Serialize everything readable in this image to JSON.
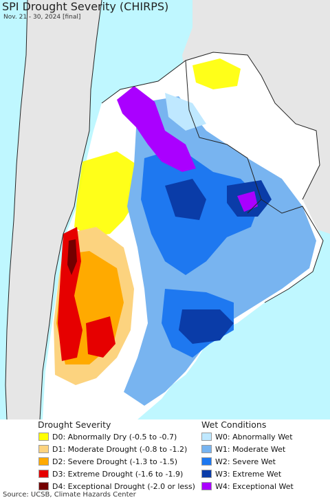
{
  "title": "SPI Drought Severity (CHIRPS)",
  "subtitle": "Nov. 21 - 30, 2024 [final]",
  "colors": {
    "ocean": "#bff7ff",
    "land_outside": "#e6e6e6",
    "land_normal": "#ffffff",
    "border": "#222222"
  },
  "legend": {
    "drought": {
      "heading": "Drought Severity",
      "items": [
        {
          "label": "D0: Abnormally Dry (-0.5 to -0.7)",
          "color": "#ffff00"
        },
        {
          "label": "D1: Moderate Drought (-0.8 to -1.2)",
          "color": "#fcd37f"
        },
        {
          "label": "D2: Severe Drought (-1.3 to -1.5)",
          "color": "#ffaa00"
        },
        {
          "label": "D3: Extreme Drought (-1.6 to -1.9)",
          "color": "#e60000"
        },
        {
          "label": "D4: Exceptional Drought (-2.0 or less)",
          "color": "#730000"
        }
      ]
    },
    "wet": {
      "heading": "Wet Conditions",
      "items": [
        {
          "label": "W0: Abnormally Wet",
          "color": "#bfe8ff"
        },
        {
          "label": "W1: Moderate Wet",
          "color": "#78b4f0"
        },
        {
          "label": "W2: Severe Wet",
          "color": "#1e78f0"
        },
        {
          "label": "W3: Extreme Wet",
          "color": "#0a3ca8"
        },
        {
          "label": "W4: Exceptional Wet",
          "color": "#aa00ff"
        }
      ]
    }
  },
  "source": "Source: UCSB, Climate Hazards Center"
}
